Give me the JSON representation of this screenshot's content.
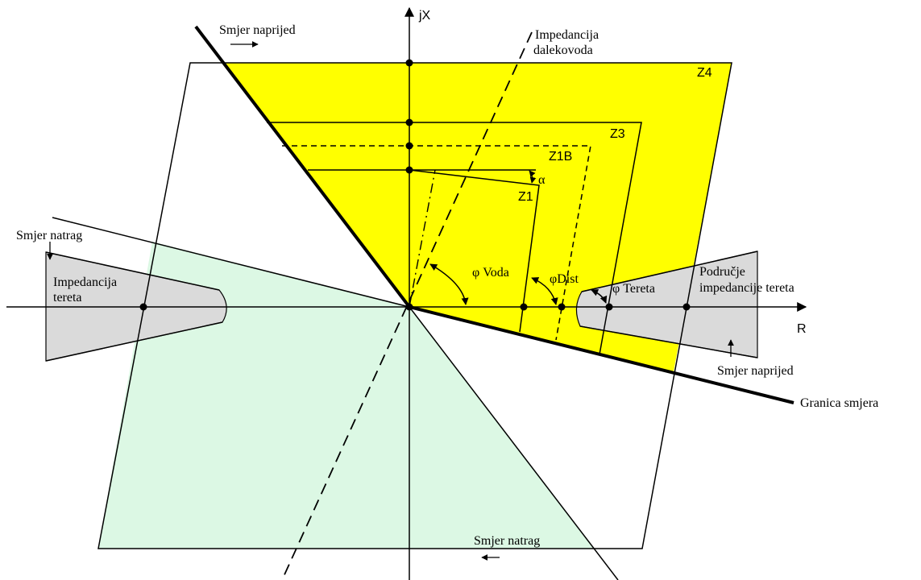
{
  "axes": {
    "imag_label": "jX",
    "real_label": "R"
  },
  "zones": {
    "z4": "Z4",
    "z3": "Z3",
    "z1b": "Z1B",
    "z1": "Z1"
  },
  "labels": {
    "forward_top": "Smjer naprijed",
    "line_impedance_1": "Impedancija",
    "line_impedance_2": "dalekovoda",
    "reverse_left": "Smjer natrag",
    "load_impedance_left_1": "Impedancija",
    "load_impedance_left_2": "tereta",
    "load_area_1": "Područje",
    "load_area_2": "impedancije tereta",
    "forward_right": "Smjer naprijed",
    "direction_boundary": "Granica smjera",
    "reverse_bottom": "Smjer natrag"
  },
  "angles": {
    "alpha": "α",
    "phi_line": "φ Voda",
    "phi_dist": "φDist",
    "phi_load": "φ Tereta"
  },
  "colors": {
    "forward_zone": "#ffff00",
    "reverse_zone": "#dcf8e4",
    "load_zone": "#dadada",
    "lines": "#000000"
  }
}
